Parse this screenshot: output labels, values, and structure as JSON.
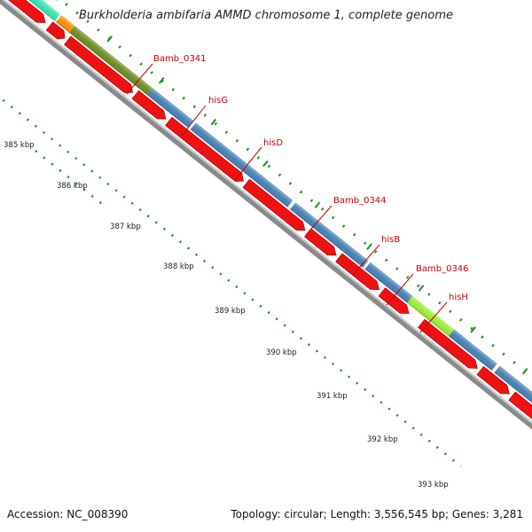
{
  "header": {
    "title": "Burkholderia ambifaria AMMD chromosome 1, complete genome"
  },
  "footer": {
    "accession": "Accession: NC_008390",
    "summary": "Topology: circular; Length: 3,556,545 bp; Genes: 3,281"
  },
  "scale_labels": [
    "385 kbp",
    "386 kbp",
    "387 kbp",
    "388 kbp",
    "389 kbp",
    "390 kbp",
    "391 kbp",
    "392 kbp",
    "393 kbp"
  ],
  "gene_labels": [
    "Bamb_0341",
    "hisG",
    "hisD",
    "Bamb_0344",
    "hisB",
    "Bamb_0346",
    "hisH"
  ],
  "colors": {
    "cds_reverse": "#ee1111",
    "gene_teal": "#33e6b0",
    "gene_orange": "#ff8c00",
    "gene_olive": "#6b8e23",
    "gene_blue": "#4682b4",
    "gene_lime": "#9aee33",
    "backbone": "#7a7a7a",
    "ticks": "#228b22",
    "label_text": "#cc0000"
  }
}
